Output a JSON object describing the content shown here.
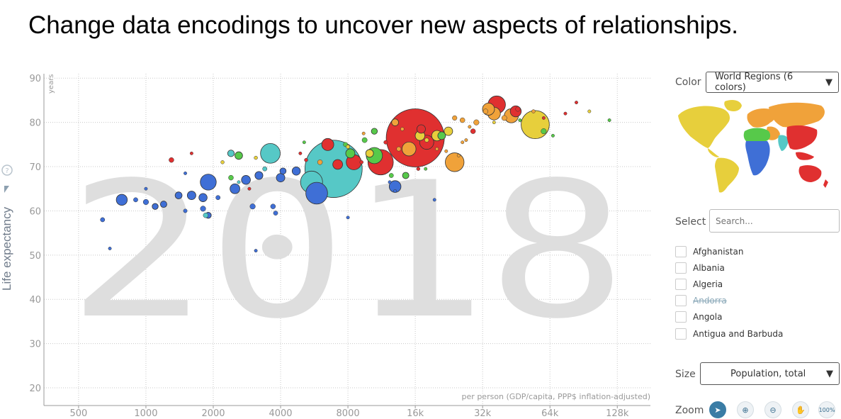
{
  "slide": {
    "title": "Change data encodings to uncover new aspects of relationships."
  },
  "chart_data": {
    "type": "scatter",
    "title": "",
    "year_watermark": "2018",
    "ylabel": "Life expectancy",
    "yunit": "years",
    "xlabel": "per person (GDP/capita, PPP$ inflation-adjusted)",
    "xscale": "log2",
    "xlim": [
      350,
      180000
    ],
    "ylim": [
      16,
      91
    ],
    "yticks": [
      20,
      30,
      40,
      50,
      60,
      70,
      80,
      90
    ],
    "xticks": [
      {
        "value": 500,
        "label": "500"
      },
      {
        "value": 1000,
        "label": "1000"
      },
      {
        "value": 2000,
        "label": "2000"
      },
      {
        "value": 4000,
        "label": "4000"
      },
      {
        "value": 8000,
        "label": "8000"
      },
      {
        "value": 16000,
        "label": "16k"
      },
      {
        "value": 32000,
        "label": "32k"
      },
      {
        "value": 64000,
        "label": "64k"
      },
      {
        "value": 128000,
        "label": "128k"
      }
    ],
    "colors": {
      "africa": "#3f6fd6",
      "asia": "#e03030",
      "europe": "#e7cf3c",
      "america": "#57c94a",
      "east_asia": "#56c8c6",
      "middle_east": "#f0a23a"
    },
    "points": [
      {
        "gdp": 6900,
        "life": 69.5,
        "pop": 1350,
        "region": "east_asia"
      },
      {
        "gdp": 16000,
        "life": 76.5,
        "pop": 1390,
        "region": "asia"
      },
      {
        "gdp": 55000,
        "life": 79.5,
        "pop": 327,
        "region": "europe"
      },
      {
        "gdp": 11200,
        "life": 71.0,
        "pop": 265,
        "region": "asia"
      },
      {
        "gdp": 5500,
        "life": 66.5,
        "pop": 200,
        "region": "east_asia"
      },
      {
        "gdp": 5800,
        "life": 64.0,
        "pop": 195,
        "region": "africa"
      },
      {
        "gdp": 3600,
        "life": 73.0,
        "pop": 160,
        "region": "east_asia"
      },
      {
        "gdp": 10500,
        "life": 72.5,
        "pop": 108,
        "region": "america"
      },
      {
        "gdp": 6500,
        "life": 75.0,
        "pop": 60,
        "region": "asia"
      },
      {
        "gdp": 37000,
        "life": 84.0,
        "pop": 126,
        "region": "asia"
      },
      {
        "gdp": 24000,
        "life": 71.0,
        "pop": 145,
        "region": "middle_east"
      },
      {
        "gdp": 1900,
        "life": 66.5,
        "pop": 105,
        "region": "africa"
      },
      {
        "gdp": 18000,
        "life": 75.5,
        "pop": 82,
        "region": "asia"
      },
      {
        "gdp": 8500,
        "life": 71.0,
        "pop": 95,
        "region": "asia"
      },
      {
        "gdp": 13000,
        "life": 65.5,
        "pop": 57,
        "region": "africa"
      },
      {
        "gdp": 43000,
        "life": 81.5,
        "pop": 82,
        "region": "middle_east"
      },
      {
        "gdp": 15000,
        "life": 74.0,
        "pop": 80,
        "region": "middle_east"
      },
      {
        "gdp": 780,
        "life": 62.5,
        "pop": 50,
        "region": "africa"
      },
      {
        "gdp": 2500,
        "life": 65.0,
        "pop": 40,
        "region": "africa"
      },
      {
        "gdp": 4000,
        "life": 67.5,
        "pop": 30,
        "region": "africa"
      },
      {
        "gdp": 1600,
        "life": 63.5,
        "pop": 30,
        "region": "africa"
      },
      {
        "gdp": 36000,
        "life": 82.0,
        "pop": 66,
        "region": "middle_east"
      },
      {
        "gdp": 34000,
        "life": 83.0,
        "pop": 60,
        "region": "middle_east"
      },
      {
        "gdp": 7200,
        "life": 70.5,
        "pop": 40,
        "region": "asia"
      },
      {
        "gdp": 16800,
        "life": 77.0,
        "pop": 38,
        "region": "europe"
      },
      {
        "gdp": 20000,
        "life": 77.0,
        "pop": 45,
        "region": "europe"
      },
      {
        "gdp": 45000,
        "life": 82.5,
        "pop": 50,
        "region": "asia"
      },
      {
        "gdp": 17000,
        "life": 78.5,
        "pop": 30,
        "region": "asia"
      },
      {
        "gdp": 8200,
        "life": 73.0,
        "pop": 35,
        "region": "america"
      },
      {
        "gdp": 2800,
        "life": 67.0,
        "pop": 33,
        "region": "africa"
      },
      {
        "gdp": 1800,
        "life": 63.0,
        "pop": 28,
        "region": "africa"
      },
      {
        "gdp": 3200,
        "life": 68.0,
        "pop": 26,
        "region": "africa"
      },
      {
        "gdp": 10000,
        "life": 73.0,
        "pop": 25,
        "region": "europe"
      },
      {
        "gdp": 22500,
        "life": 78.0,
        "pop": 30,
        "region": "europe"
      },
      {
        "gdp": 21000,
        "life": 77.0,
        "pop": 25,
        "region": "america"
      },
      {
        "gdp": 4700,
        "life": 69.0,
        "pop": 28,
        "region": "africa"
      },
      {
        "gdp": 2600,
        "life": 72.5,
        "pop": 24,
        "region": "america"
      },
      {
        "gdp": 14500,
        "life": 68.0,
        "pop": 17,
        "region": "america"
      },
      {
        "gdp": 13000,
        "life": 80.0,
        "pop": 20,
        "region": "middle_east"
      },
      {
        "gdp": 10500,
        "life": 78.0,
        "pop": 15,
        "region": "america"
      },
      {
        "gdp": 1400,
        "life": 63.5,
        "pop": 20,
        "region": "africa"
      },
      {
        "gdp": 1200,
        "life": 61.5,
        "pop": 17,
        "region": "africa"
      },
      {
        "gdp": 1900,
        "life": 59.0,
        "pop": 15,
        "region": "africa"
      },
      {
        "gdp": 1100,
        "life": 61.0,
        "pop": 15,
        "region": "africa"
      },
      {
        "gdp": 1800,
        "life": 60.5,
        "pop": 12,
        "region": "africa"
      },
      {
        "gdp": 1000,
        "life": 62.0,
        "pop": 12,
        "region": "africa"
      },
      {
        "gdp": 3000,
        "life": 61.0,
        "pop": 12,
        "region": "africa"
      },
      {
        "gdp": 3700,
        "life": 61.0,
        "pop": 10,
        "region": "africa"
      },
      {
        "gdp": 3800,
        "life": 59.5,
        "pop": 8,
        "region": "africa"
      },
      {
        "gdp": 640,
        "life": 58.0,
        "pop": 8,
        "region": "africa"
      },
      {
        "gdp": 900,
        "life": 62.5,
        "pop": 8,
        "region": "africa"
      },
      {
        "gdp": 2100,
        "life": 63.0,
        "pop": 8,
        "region": "africa"
      },
      {
        "gdp": 1500,
        "life": 60.0,
        "pop": 6,
        "region": "africa"
      },
      {
        "gdp": 4100,
        "life": 69.0,
        "pop": 16,
        "region": "africa"
      },
      {
        "gdp": 2400,
        "life": 73.0,
        "pop": 18,
        "region": "east_asia"
      },
      {
        "gdp": 3400,
        "life": 69.5,
        "pop": 8,
        "region": "east_asia"
      },
      {
        "gdp": 1300,
        "life": 71.5,
        "pop": 10,
        "region": "asia"
      },
      {
        "gdp": 2400,
        "life": 67.5,
        "pop": 10,
        "region": "america"
      },
      {
        "gdp": 9500,
        "life": 76.0,
        "pop": 11,
        "region": "america"
      },
      {
        "gdp": 1850,
        "life": 59.0,
        "pop": 10,
        "region": "east_asia"
      },
      {
        "gdp": 12500,
        "life": 68.0,
        "pop": 8,
        "region": "america"
      },
      {
        "gdp": 60000,
        "life": 78.0,
        "pop": 12,
        "region": "america"
      },
      {
        "gdp": 30000,
        "life": 80.0,
        "pop": 12,
        "region": "middle_east"
      },
      {
        "gdp": 40000,
        "life": 81.0,
        "pop": 11,
        "region": "middle_east"
      },
      {
        "gdp": 33000,
        "life": 82.5,
        "pop": 10,
        "region": "middle_east"
      },
      {
        "gdp": 26000,
        "life": 80.5,
        "pop": 10,
        "region": "middle_east"
      },
      {
        "gdp": 46000,
        "life": 83.0,
        "pop": 9,
        "region": "asia"
      },
      {
        "gdp": 24000,
        "life": 81.0,
        "pop": 9,
        "region": "middle_east"
      },
      {
        "gdp": 29000,
        "life": 78.0,
        "pop": 10,
        "region": "asia"
      },
      {
        "gdp": 6000,
        "life": 71.0,
        "pop": 10,
        "region": "middle_east"
      },
      {
        "gdp": 7800,
        "life": 75.0,
        "pop": 8,
        "region": "america"
      },
      {
        "gdp": 13500,
        "life": 74.0,
        "pop": 8,
        "region": "middle_east"
      },
      {
        "gdp": 18000,
        "life": 76.0,
        "pop": 7,
        "region": "europe"
      },
      {
        "gdp": 8000,
        "life": 74.5,
        "pop": 6,
        "region": "europe"
      },
      {
        "gdp": 9200,
        "life": 71.0,
        "pop": 5,
        "region": "asia"
      },
      {
        "gdp": 11800,
        "life": 75.5,
        "pop": 6,
        "region": "asia"
      },
      {
        "gdp": 3100,
        "life": 72.0,
        "pop": 5,
        "region": "europe"
      },
      {
        "gdp": 2200,
        "life": 71.0,
        "pop": 5,
        "region": "europe"
      },
      {
        "gdp": 5200,
        "life": 71.5,
        "pop": 5,
        "region": "asia"
      },
      {
        "gdp": 4900,
        "life": 73.0,
        "pop": 4,
        "region": "asia"
      },
      {
        "gdp": 14000,
        "life": 78.5,
        "pop": 5,
        "region": "middle_east"
      },
      {
        "gdp": 16500,
        "life": 69.5,
        "pop": 5,
        "region": "asia"
      },
      {
        "gdp": 20000,
        "life": 74.0,
        "pop": 4,
        "region": "middle_east"
      },
      {
        "gdp": 26000,
        "life": 75.5,
        "pop": 3,
        "region": "middle_east"
      },
      {
        "gdp": 28000,
        "life": 79.0,
        "pop": 4,
        "region": "middle_east"
      },
      {
        "gdp": 36000,
        "life": 80.0,
        "pop": 4,
        "region": "europe"
      },
      {
        "gdp": 54000,
        "life": 82.5,
        "pop": 5,
        "region": "middle_east"
      },
      {
        "gdp": 60000,
        "life": 81.0,
        "pop": 4,
        "region": "asia"
      },
      {
        "gdp": 66000,
        "life": 77.0,
        "pop": 3,
        "region": "america"
      },
      {
        "gdp": 75000,
        "life": 82.0,
        "pop": 2,
        "region": "asia"
      },
      {
        "gdp": 96000,
        "life": 82.5,
        "pop": 3,
        "region": "europe"
      },
      {
        "gdp": 84000,
        "life": 84.5,
        "pop": 3,
        "region": "asia"
      },
      {
        "gdp": 118000,
        "life": 80.5,
        "pop": 2,
        "region": "america"
      },
      {
        "gdp": 1600,
        "life": 73.0,
        "pop": 2,
        "region": "asia"
      },
      {
        "gdp": 1000,
        "life": 65.0,
        "pop": 2,
        "region": "africa"
      },
      {
        "gdp": 690,
        "life": 51.5,
        "pop": 2,
        "region": "africa"
      },
      {
        "gdp": 3100,
        "life": 51.0,
        "pop": 2,
        "region": "africa"
      },
      {
        "gdp": 8000,
        "life": 58.5,
        "pop": 2,
        "region": "africa"
      },
      {
        "gdp": 5100,
        "life": 75.5,
        "pop": 2,
        "region": "america"
      },
      {
        "gdp": 2600,
        "life": 66.5,
        "pop": 2,
        "region": "east_asia"
      },
      {
        "gdp": 1500,
        "life": 68.5,
        "pop": 2,
        "region": "africa"
      },
      {
        "gdp": 2900,
        "life": 65.0,
        "pop": 2,
        "region": "asia"
      },
      {
        "gdp": 12300,
        "life": 66.5,
        "pop": 2,
        "region": "africa"
      },
      {
        "gdp": 19500,
        "life": 62.5,
        "pop": 2,
        "region": "africa"
      },
      {
        "gdp": 17800,
        "life": 69.5,
        "pop": 2,
        "region": "america"
      },
      {
        "gdp": 9400,
        "life": 77.5,
        "pop": 2,
        "region": "middle_east"
      },
      {
        "gdp": 22000,
        "life": 73.5,
        "pop": 2,
        "region": "middle_east"
      },
      {
        "gdp": 25000,
        "life": 72.5,
        "pop": 2,
        "region": "middle_east"
      },
      {
        "gdp": 27000,
        "life": 76.0,
        "pop": 2,
        "region": "middle_east"
      },
      {
        "gdp": 47000,
        "life": 80.5,
        "pop": 2,
        "region": "america"
      },
      {
        "gdp": 13000,
        "life": 64.5,
        "pop": 2,
        "region": "africa"
      }
    ]
  },
  "controls": {
    "color_label": "Color",
    "color_value": "World Regions (6 colors)",
    "select_label": "Select",
    "search_placeholder": "Search...",
    "countries": [
      {
        "name": "Afghanistan",
        "disabled": false
      },
      {
        "name": "Albania",
        "disabled": false
      },
      {
        "name": "Algeria",
        "disabled": false
      },
      {
        "name": "Andorra",
        "disabled": true
      },
      {
        "name": "Angola",
        "disabled": false
      },
      {
        "name": "Antigua and Barbuda",
        "disabled": false
      }
    ],
    "size_label": "Size",
    "size_value": "Population, total",
    "zoom_label": "Zoom",
    "zoom_reset": "100%"
  }
}
